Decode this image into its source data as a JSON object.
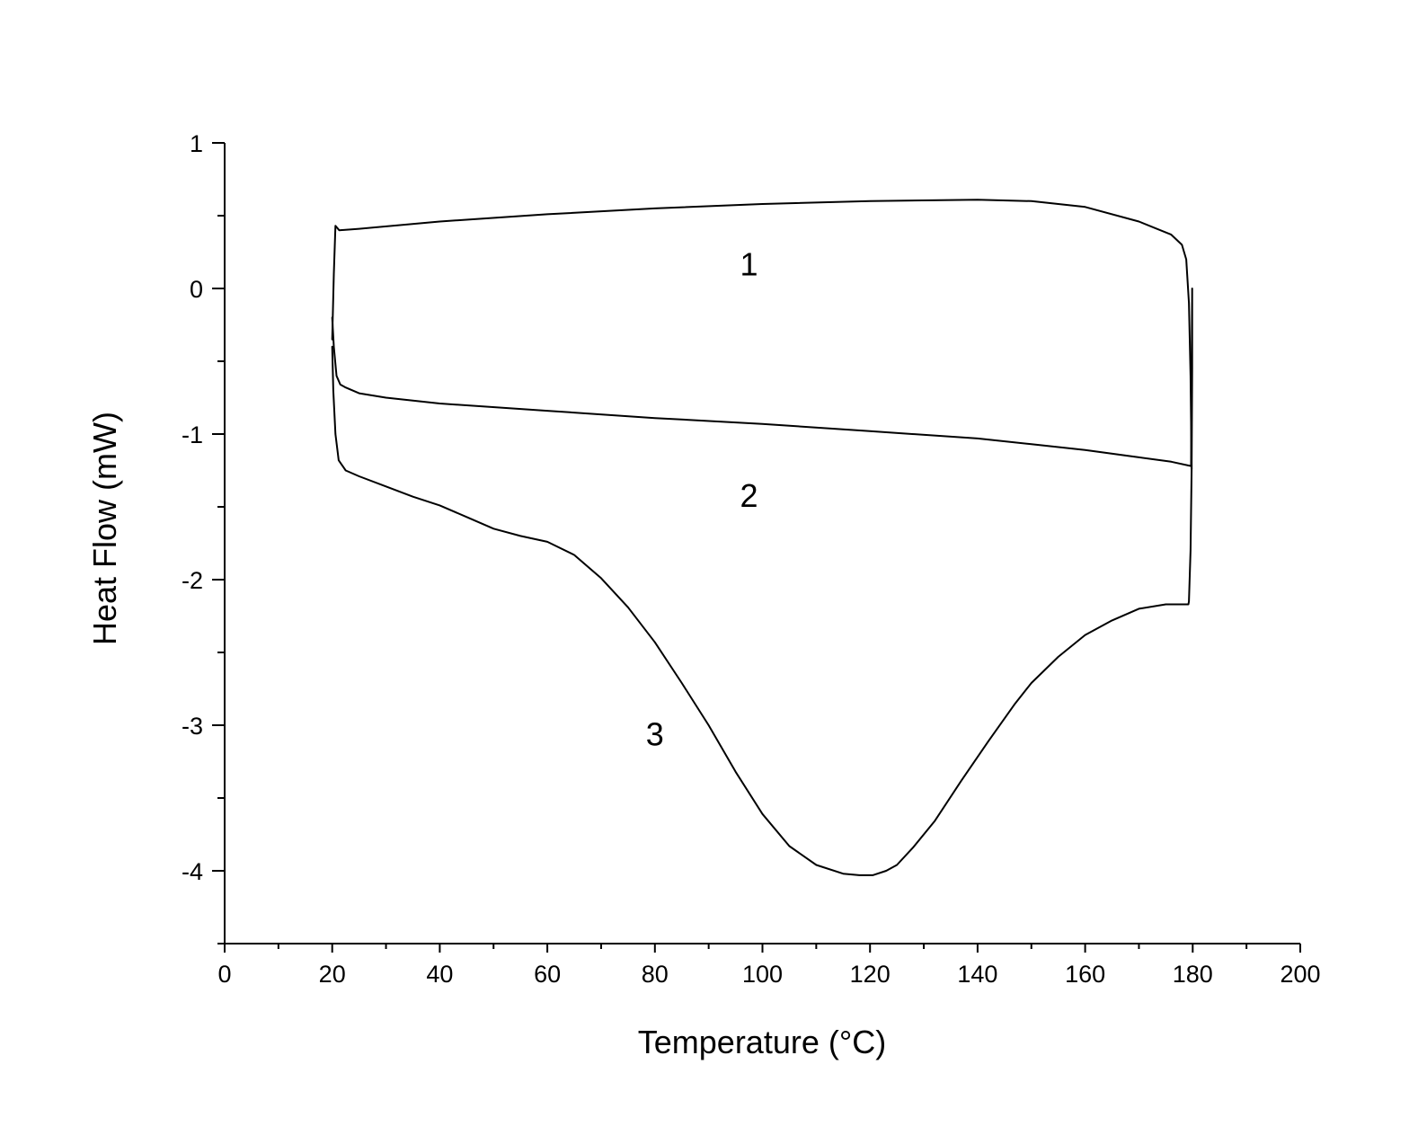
{
  "chart_data": {
    "type": "line",
    "title": "",
    "xlabel": "Temperature (°C)",
    "ylabel": "Heat Flow (mW)",
    "xlim": [
      0,
      200
    ],
    "ylim": [
      -4.5,
      1
    ],
    "x_ticks": [
      0,
      20,
      40,
      60,
      80,
      100,
      120,
      140,
      160,
      180,
      200
    ],
    "x_tick_labels": [
      "0",
      "20",
      "40",
      "60",
      "80",
      "100",
      "120",
      "140",
      "160",
      "180",
      "200"
    ],
    "y_ticks": [
      1,
      0,
      -1,
      -2,
      -3,
      -4
    ],
    "y_tick_labels": [
      "1",
      "0",
      "-1",
      "-2",
      "-3",
      "-4"
    ],
    "grid": false,
    "legend": false,
    "series": [
      {
        "label": "1",
        "label_position": [
          97.5,
          0.17
        ],
        "x": [
          20.0,
          20.3,
          20.6,
          21.3,
          25,
          40,
          60,
          80,
          100,
          120,
          140,
          150,
          160,
          170,
          176,
          178,
          178.8,
          179.3,
          179.6,
          179.8
        ],
        "y": [
          -0.35,
          0.1,
          0.43,
          0.4,
          0.41,
          0.46,
          0.51,
          0.55,
          0.58,
          0.6,
          0.61,
          0.6,
          0.56,
          0.46,
          0.37,
          0.3,
          0.2,
          -0.1,
          -0.6,
          -1.24
        ]
      },
      {
        "label": "2",
        "label_position": [
          97.5,
          -1.42
        ],
        "x": [
          179.8,
          179.9,
          179.9,
          179.7,
          176,
          170,
          160,
          150,
          140,
          120,
          100,
          80,
          60,
          40,
          30,
          25,
          22.5,
          21.5,
          20.8,
          20.3,
          20.0
        ],
        "y": [
          -1.24,
          -0.55,
          0.0,
          -1.22,
          -1.19,
          -1.16,
          -1.11,
          -1.07,
          -1.03,
          -0.98,
          -0.93,
          -0.89,
          -0.84,
          -0.79,
          -0.75,
          -0.72,
          -0.68,
          -0.66,
          -0.6,
          -0.4,
          -0.2
        ]
      },
      {
        "label": "3",
        "label_position": [
          80,
          -3.06
        ],
        "x": [
          20.0,
          20.2,
          20.6,
          21.2,
          22.5,
          25,
          30,
          35,
          40,
          45,
          50,
          55,
          60,
          65,
          70,
          75,
          80,
          85,
          90,
          95,
          100,
          105,
          110,
          115,
          118,
          120.5,
          123,
          125,
          128,
          132,
          137,
          142,
          147,
          150,
          155,
          160,
          165,
          170,
          175,
          179.2,
          179.3,
          179.6,
          179.8
        ],
        "y": [
          -0.4,
          -0.7,
          -1.0,
          -1.18,
          -1.25,
          -1.29,
          -1.36,
          -1.43,
          -1.49,
          -1.57,
          -1.65,
          -1.7,
          -1.74,
          -1.83,
          -1.99,
          -2.19,
          -2.43,
          -2.71,
          -3.0,
          -3.32,
          -3.61,
          -3.83,
          -3.96,
          -4.02,
          -4.03,
          -4.03,
          -4.0,
          -3.96,
          -3.84,
          -3.66,
          -3.38,
          -3.11,
          -2.85,
          -2.71,
          -2.53,
          -2.38,
          -2.28,
          -2.2,
          -2.17,
          -2.17,
          -2.15,
          -1.8,
          -1.24
        ]
      }
    ]
  }
}
